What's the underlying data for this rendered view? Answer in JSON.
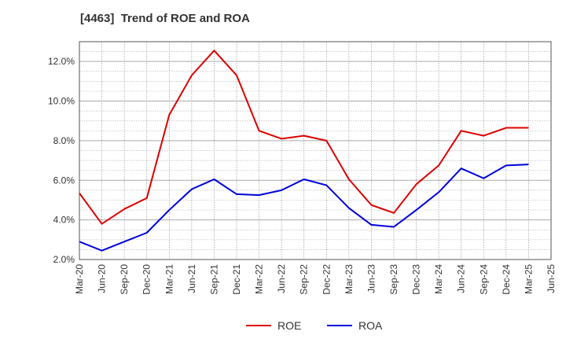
{
  "chart_data": {
    "type": "line",
    "title": "[4463]  Trend of ROE and ROA",
    "xlabel": "",
    "ylabel": "",
    "categories": [
      "Mar-20",
      "Jun-20",
      "Sep-20",
      "Dec-20",
      "Mar-21",
      "Jun-21",
      "Sep-21",
      "Dec-21",
      "Mar-22",
      "Jun-22",
      "Sep-22",
      "Dec-22",
      "Mar-23",
      "Jun-23",
      "Sep-23",
      "Dec-23",
      "Mar-24",
      "Jun-24",
      "Sep-24",
      "Dec-24",
      "Mar-25",
      "Jun-25"
    ],
    "y_ticks": [
      "2.0%",
      "4.0%",
      "6.0%",
      "8.0%",
      "10.0%",
      "12.0%"
    ],
    "ylim": [
      2.0,
      13.0
    ],
    "grid": true,
    "legend_position": "bottom",
    "series": [
      {
        "name": "ROE",
        "color": "#dd0000",
        "values": [
          5.35,
          3.8,
          4.55,
          5.1,
          9.3,
          11.3,
          12.55,
          11.3,
          8.5,
          8.1,
          8.25,
          8.0,
          6.05,
          4.75,
          4.35,
          5.8,
          6.75,
          8.5,
          8.25,
          8.65,
          8.65,
          null
        ]
      },
      {
        "name": "ROA",
        "color": "#0000dd",
        "values": [
          2.9,
          2.45,
          2.9,
          3.35,
          4.5,
          5.55,
          6.05,
          5.3,
          5.25,
          5.5,
          6.05,
          5.75,
          4.6,
          3.75,
          3.65,
          4.5,
          5.4,
          6.6,
          6.1,
          6.75,
          6.8,
          null
        ]
      }
    ]
  }
}
